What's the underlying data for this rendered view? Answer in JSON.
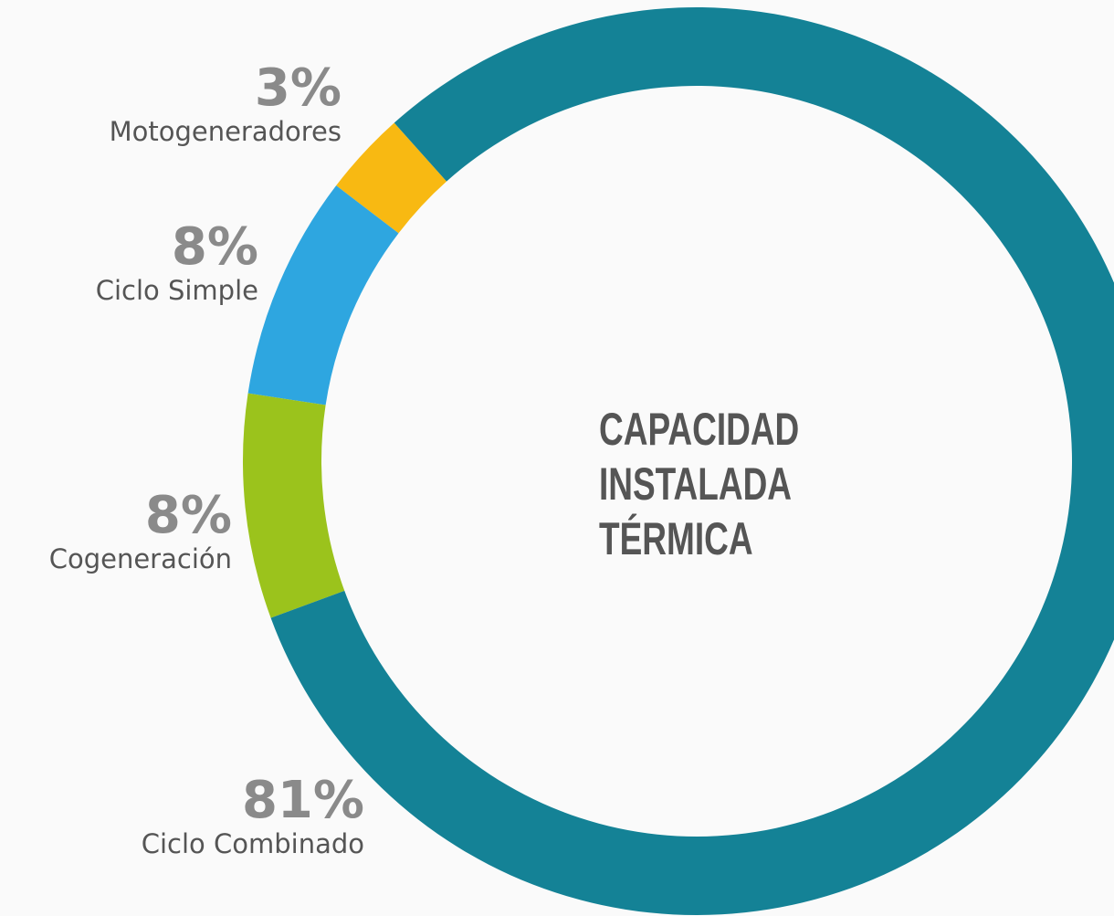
{
  "chart_data": {
    "type": "donut",
    "title": "CAPACIDAD INSTALADA TÉRMICA",
    "categories": [
      "Motogeneradores",
      "Ciclo Simple",
      "Cogeneración",
      "Ciclo Combinado"
    ],
    "values": [
      3,
      8,
      8,
      81
    ],
    "value_labels": [
      "3%",
      "8%",
      "8%",
      "81%"
    ],
    "colors": [
      "#f8b912",
      "#2ea6e0",
      "#9bc31c",
      "#148296"
    ]
  }
}
